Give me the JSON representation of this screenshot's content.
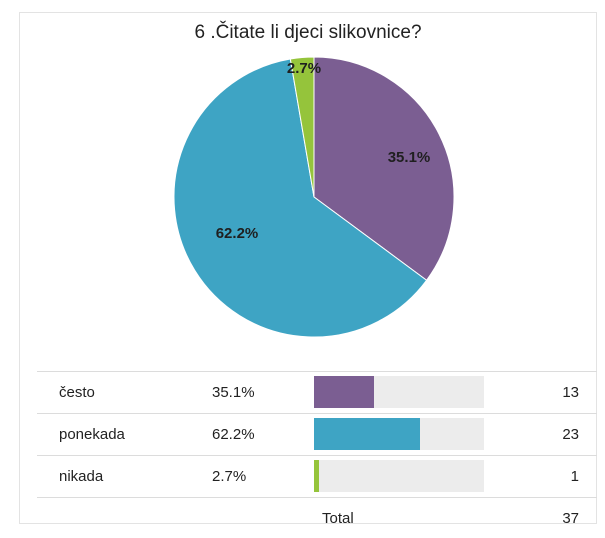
{
  "chart_data": {
    "type": "pie",
    "title": "6 .Čitate li djeci slikovnice?",
    "slices": [
      {
        "label": "često",
        "percent_label": "35.1%",
        "value": 13,
        "color": "#7b5e92"
      },
      {
        "label": "ponekada",
        "percent_label": "62.2%",
        "value": 23,
        "color": "#3ea4c4"
      },
      {
        "label": "nikada",
        "percent_label": "2.7%",
        "value": 1,
        "color": "#95c43b"
      }
    ],
    "total_label": "Total",
    "total_value": "37"
  }
}
